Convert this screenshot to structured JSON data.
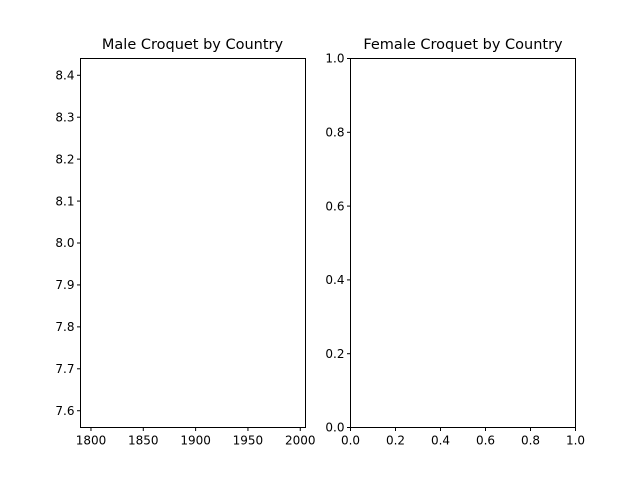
{
  "chart_data": [
    {
      "type": "line",
      "title": "Male Croquet by Country",
      "xlabel": "",
      "ylabel": "",
      "xlim": [
        1790,
        2005
      ],
      "ylim": [
        7.56,
        8.44
      ],
      "xticks": [
        1800,
        1850,
        1900,
        1950,
        2000
      ],
      "yticks": [
        7.6,
        7.7,
        7.8,
        7.9,
        8.0,
        8.1,
        8.2,
        8.3,
        8.4
      ],
      "xtick_labels": [
        "1800",
        "1850",
        "1900",
        "1950",
        "2000"
      ],
      "ytick_labels": [
        "7.6",
        "7.7",
        "7.8",
        "7.9",
        "8.0",
        "8.1",
        "8.2",
        "8.3",
        "8.4"
      ],
      "series": [],
      "grid": false
    },
    {
      "type": "line",
      "title": "Female Croquet by Country",
      "xlabel": "",
      "ylabel": "",
      "xlim": [
        0,
        1
      ],
      "ylim": [
        0,
        1
      ],
      "xticks": [
        0,
        0.2,
        0.4,
        0.6,
        0.8,
        1.0
      ],
      "yticks": [
        0,
        0.2,
        0.4,
        0.6,
        0.8,
        1.0
      ],
      "xtick_labels": [
        "0.0",
        "0.2",
        "0.4",
        "0.6",
        "0.8",
        "1.0"
      ],
      "ytick_labels": [
        "0.0",
        "0.2",
        "0.4",
        "0.6",
        "0.8",
        "1.0"
      ],
      "series": [],
      "grid": false
    }
  ]
}
